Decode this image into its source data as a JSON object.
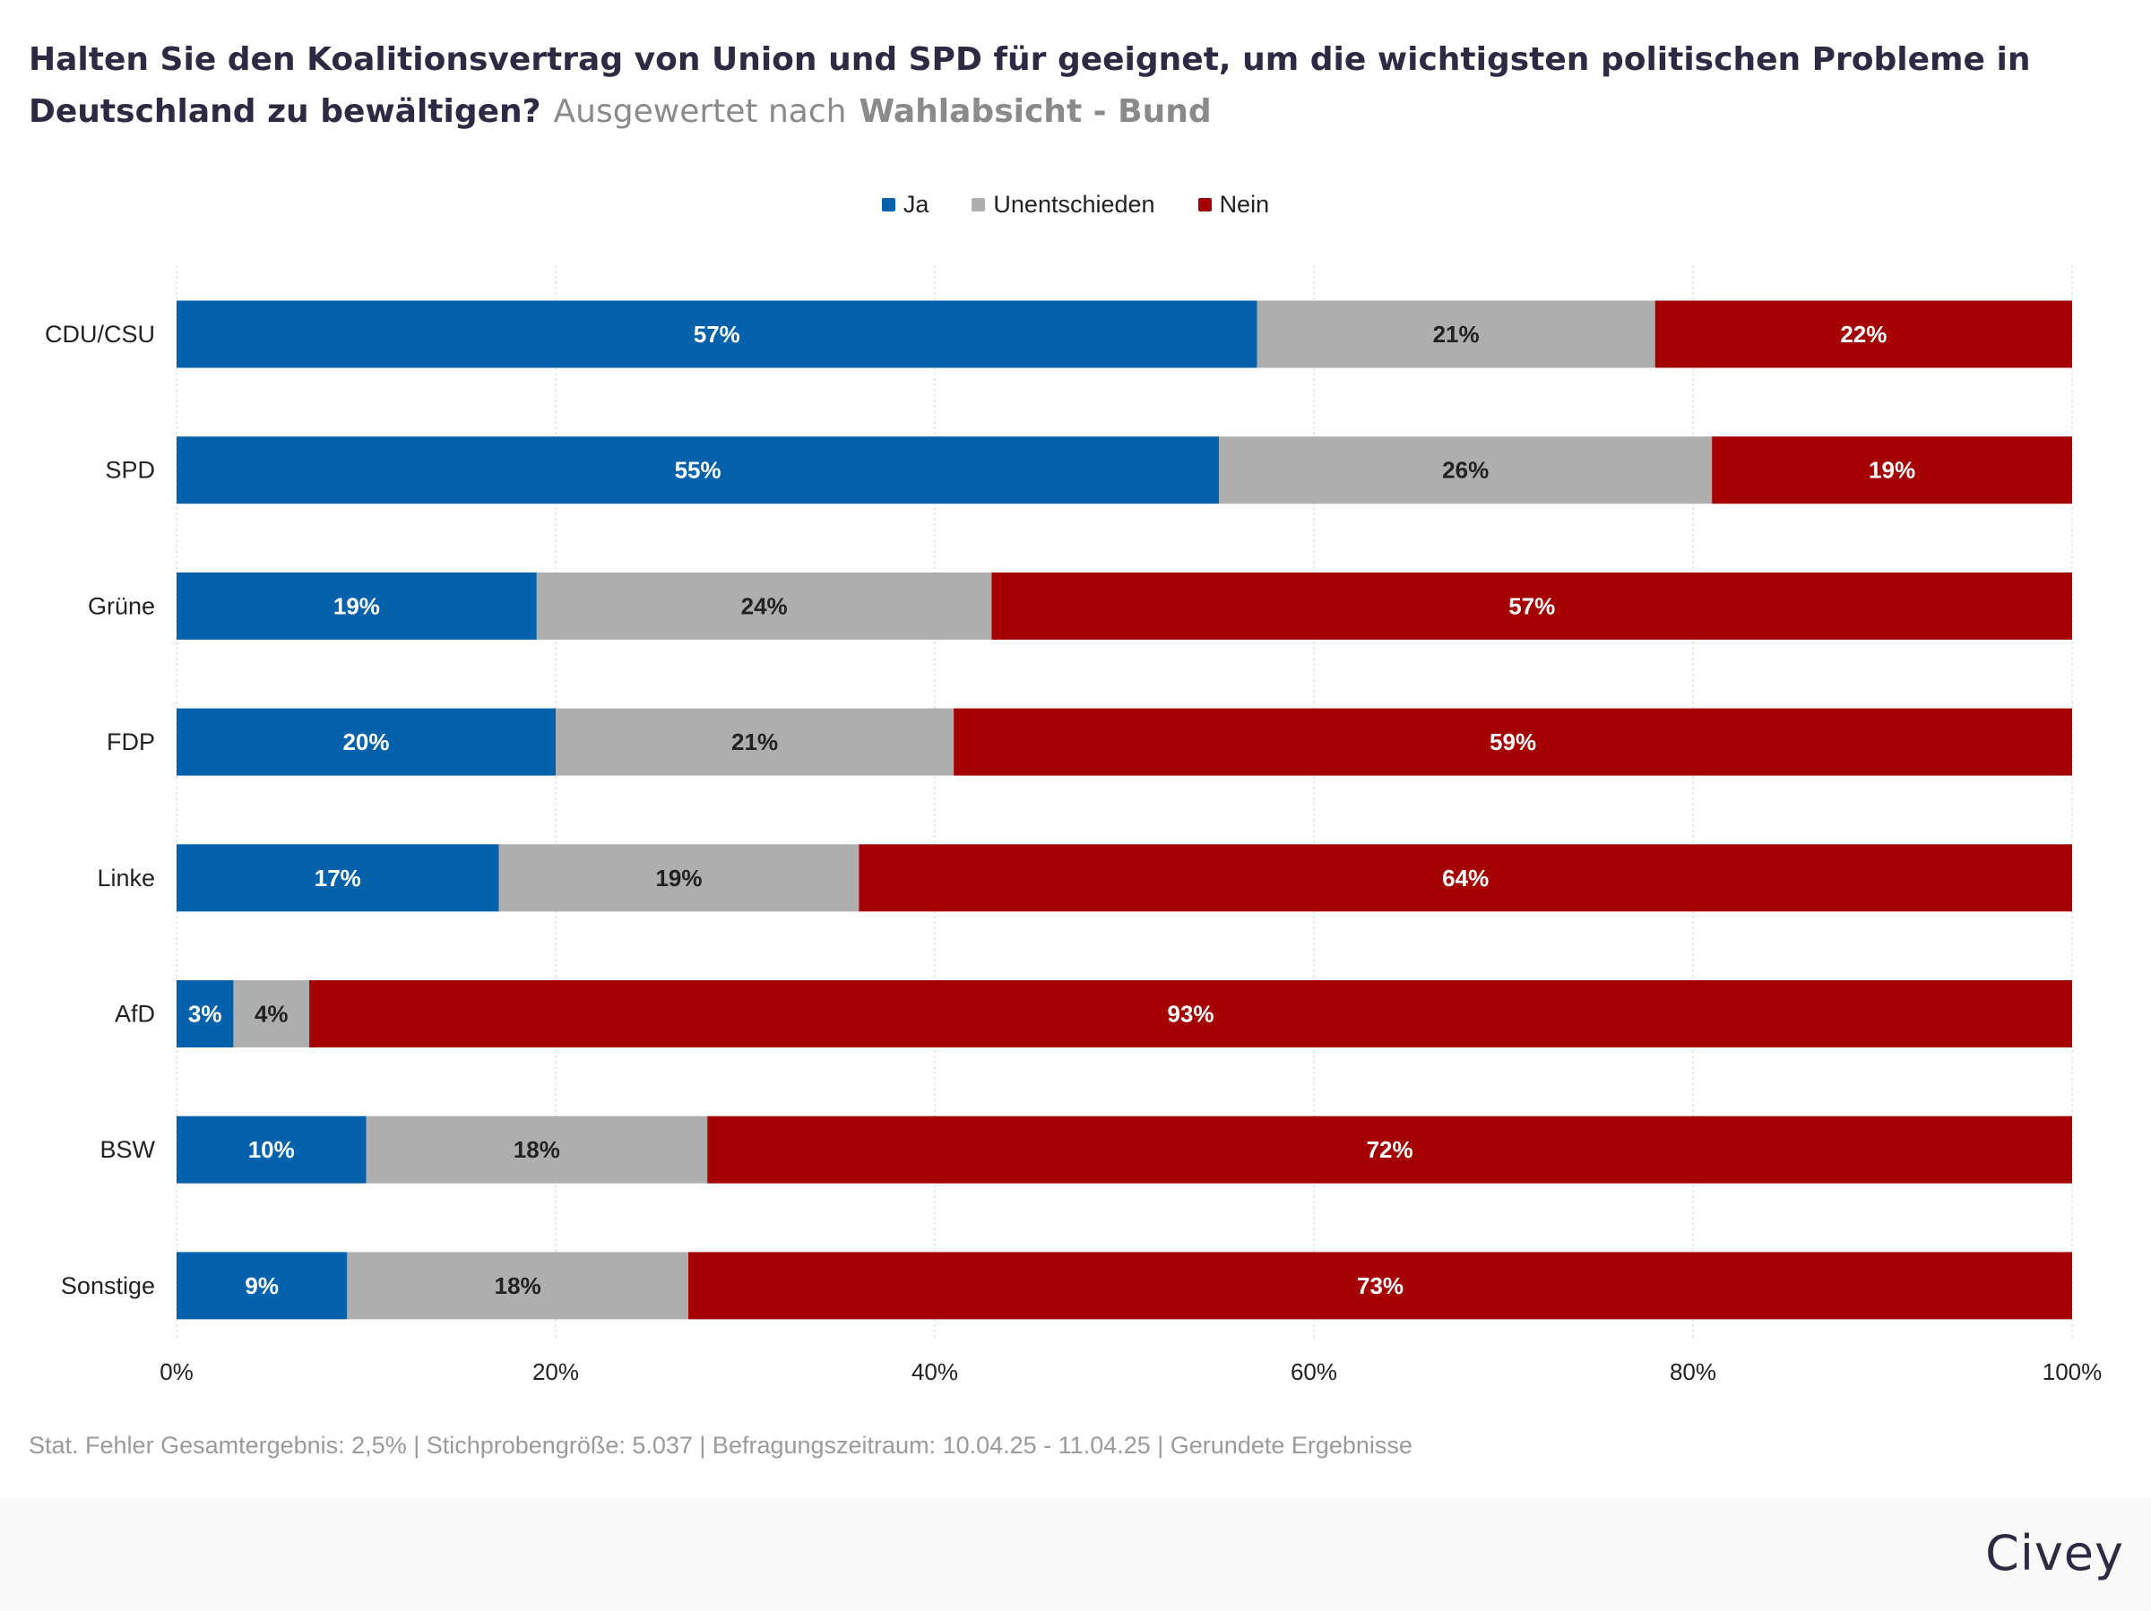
{
  "title": {
    "question": "Halten Sie den Koalitionsvertrag von Union und SPD für geeignet, um die wichtigsten politischen Probleme in Deutschland zu bewältigen?",
    "evaluated_by": "Ausgewertet nach",
    "group": "Wahlabsicht - Bund"
  },
  "footer": {
    "note": "Stat. Fehler Gesamtergebnis: 2,5% | Stichprobengröße: 5.037 | Befragungszeitraum: 10.04.25 - 11.04.25 | Gerundete Ergebnisse",
    "brand": "Civey"
  },
  "colors": {
    "ja": "#0461ac",
    "unentschieden": "#aeaeaf",
    "nein": "#a50002",
    "grid": "#e2e2e2",
    "text": "#222222"
  },
  "chart_data": {
    "type": "bar",
    "orientation": "horizontal",
    "stacked": true,
    "categories": [
      "CDU/CSU",
      "SPD",
      "Grüne",
      "FDP",
      "Linke",
      "AfD",
      "BSW",
      "Sonstige"
    ],
    "series": [
      {
        "name": "Ja",
        "color": "#0461ac",
        "label_color": "#ffffff",
        "values": [
          57,
          55,
          19,
          20,
          17,
          3,
          10,
          9
        ]
      },
      {
        "name": "Unentschieden",
        "color": "#aeaeaf",
        "label_color": "#222222",
        "values": [
          21,
          26,
          24,
          21,
          19,
          4,
          18,
          18
        ]
      },
      {
        "name": "Nein",
        "color": "#a50002",
        "label_color": "#ffffff",
        "values": [
          22,
          19,
          57,
          59,
          64,
          93,
          72,
          73
        ]
      }
    ],
    "xlim": [
      0,
      100
    ],
    "xticks": [
      "0%",
      "20%",
      "40%",
      "60%",
      "80%",
      "100%"
    ],
    "value_suffix": "%",
    "legend_position": "top-center",
    "grid": true
  }
}
